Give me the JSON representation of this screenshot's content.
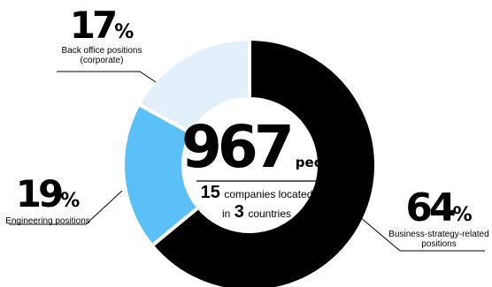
{
  "chart_data": {
    "type": "pie",
    "variant": "donut",
    "categories": [
      "Business-strategy-related positions",
      "Engineering positions",
      "Back office positions (corporate)"
    ],
    "values": [
      64,
      19,
      17
    ],
    "unit": "%",
    "colors": [
      "#000000",
      "#5bc0f8",
      "#e3f0fb"
    ]
  },
  "labels": {
    "business": {
      "value": "64",
      "unit": "%",
      "line1": "Business-strategy-related",
      "line2": "positions"
    },
    "engineering": {
      "value": "19",
      "unit": "%",
      "line1": "Engineering positions"
    },
    "backoffice": {
      "value": "17",
      "unit": "%",
      "line1": "Back office positions",
      "line2": "(corporate)"
    }
  },
  "center": {
    "people_count": "967",
    "people_unit": "people",
    "companies_count": "15",
    "companies_text": "companies located",
    "in_text": "in",
    "countries_count": "3",
    "countries_text": "countries"
  }
}
